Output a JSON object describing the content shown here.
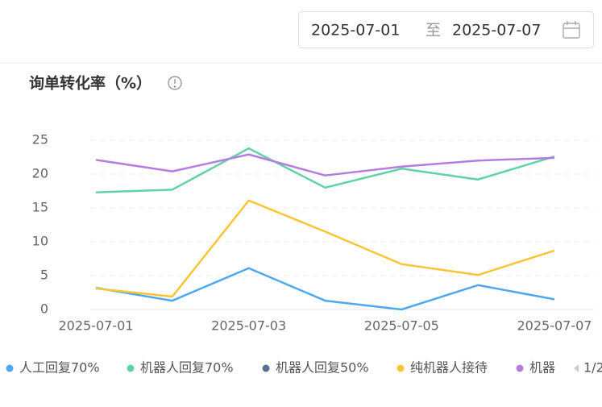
{
  "date_range": {
    "start": "2025-07-01",
    "separator": "至",
    "end": "2025-07-07"
  },
  "chart_data": {
    "type": "line",
    "title": "询单转化率（%）",
    "categories": [
      "2025-07-01",
      null,
      "2025-07-03",
      null,
      "2025-07-05",
      null,
      "2025-07-07"
    ],
    "series": [
      {
        "name": "人工回复70%",
        "color": "#4ea8f0",
        "values": [
          3.2,
          1.3,
          6.1,
          1.3,
          0,
          3.6,
          1.5
        ]
      },
      {
        "name": "机器人回复70%",
        "color": "#5fd3a6",
        "values": [
          17.3,
          17.7,
          23.8,
          18.0,
          20.8,
          19.2,
          22.6
        ]
      },
      {
        "name": "机器人回复50%",
        "color": "#5b6e96",
        "values": [
          null,
          null,
          null,
          null,
          null,
          null,
          null
        ]
      },
      {
        "name": "纯机器人接待",
        "color": "#f9c536",
        "values": [
          3.1,
          1.9,
          16.1,
          11.5,
          6.7,
          5.1,
          8.7
        ]
      },
      {
        "name": "机器",
        "color": "#b57de0",
        "values": [
          22.1,
          20.4,
          22.9,
          19.8,
          21.1,
          22.0,
          22.4
        ]
      }
    ],
    "ylim": [
      0,
      25
    ],
    "yticks": [
      0,
      5,
      10,
      15,
      20,
      25
    ],
    "grid": true,
    "legend_page": "1/2"
  }
}
